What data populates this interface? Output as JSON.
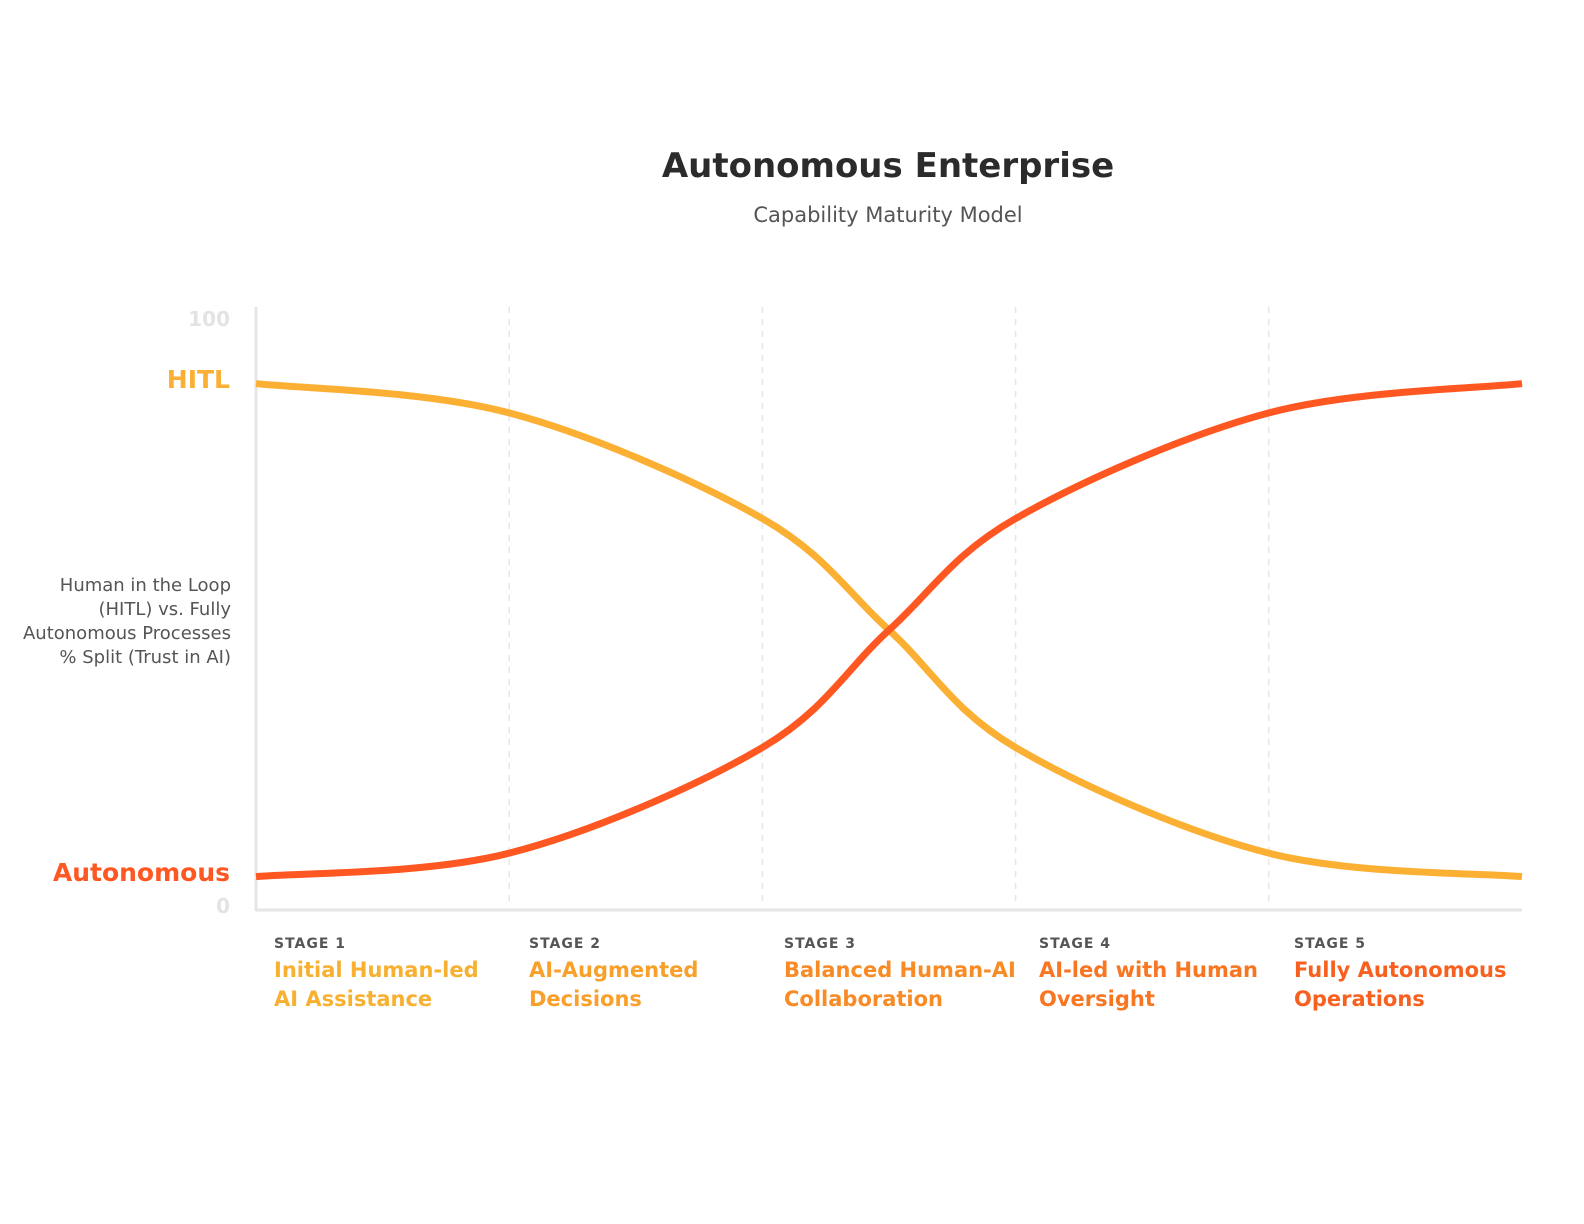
{
  "chart_data": {
    "type": "line",
    "title": "Autonomous Enterprise",
    "subtitle": "Capability Maturity Model",
    "ylabel": "Human in the Loop (HITL) vs. Fully Autonomous Processes % Split (Trust in AI)",
    "ylim": [
      0,
      100
    ],
    "yticks": [
      "0",
      "100"
    ],
    "x": [
      0,
      1,
      2,
      2.5,
      3,
      4,
      5
    ],
    "xlim": [
      0,
      5
    ],
    "grid": "vertical dashed at stage boundaries",
    "series": [
      {
        "name": "HITL",
        "color": "#fbb034",
        "values": [
          89,
          84,
          66,
          47,
          27,
          9,
          5
        ]
      },
      {
        "name": "Autonomous",
        "color": "#ff5722",
        "values": [
          5,
          9,
          27,
          47,
          66,
          84,
          89
        ]
      }
    ],
    "stages": [
      {
        "number": "STAGE 1",
        "name_line1": "Initial Human-led",
        "name_line2": "AI Assistance",
        "color": "#f7b030"
      },
      {
        "number": "STAGE 2",
        "name_line1": "AI-Augmented",
        "name_line2": "Decisions",
        "color": "#f8a02a"
      },
      {
        "number": "STAGE 3",
        "name_line1": "Balanced Human-AI",
        "name_line2": "Collaboration",
        "color": "#f88b25"
      },
      {
        "number": "STAGE 4",
        "name_line1": "AI-led with Human",
        "name_line2": "Oversight",
        "color": "#f87522"
      },
      {
        "number": "STAGE 5",
        "name_line1": "Fully Autonomous",
        "name_line2": "Operations",
        "color": "#f8601f"
      }
    ]
  }
}
